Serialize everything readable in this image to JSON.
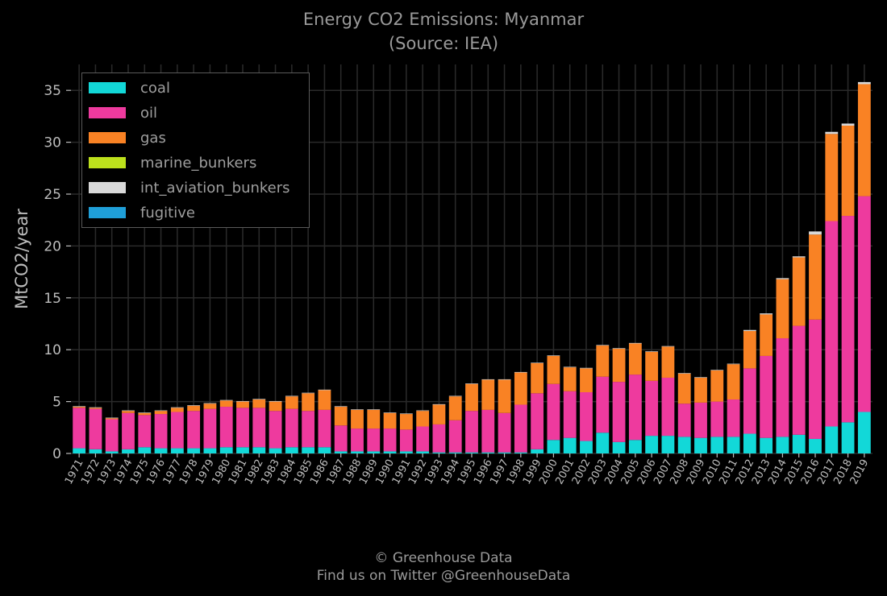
{
  "title_line1": "Energy CO2 Emissions: Myanmar",
  "title_line2": "(Source: IEA)",
  "footer_line1": "© Greenhouse Data",
  "footer_line2": "Find us on Twitter @GreenhouseData",
  "colors": {
    "coal": "#12d8d8",
    "oil": "#ee3a9e",
    "gas": "#f98224",
    "marine_bunkers": "#bde11c",
    "int_aviation_bunkers": "#d9d9d9",
    "fugitive": "#1f9fd8",
    "background": "#000000",
    "grid": "#2a2a2a"
  },
  "chart_data": {
    "type": "bar",
    "stacked": true,
    "title": "Energy CO2 Emissions: Myanmar\n(Source: IEA)",
    "xlabel": "",
    "ylabel": "MtCO2/year",
    "ylim": [
      0,
      37.5
    ],
    "yticks": [
      0,
      5,
      10,
      15,
      20,
      25,
      30,
      35
    ],
    "grid": true,
    "legend_position": "top-left",
    "categories": [
      "1971",
      "1972",
      "1973",
      "1974",
      "1975",
      "1976",
      "1977",
      "1978",
      "1979",
      "1980",
      "1981",
      "1982",
      "1983",
      "1984",
      "1985",
      "1986",
      "1987",
      "1988",
      "1989",
      "1990",
      "1991",
      "1992",
      "1993",
      "1994",
      "1995",
      "1996",
      "1997",
      "1998",
      "1999",
      "2000",
      "2001",
      "2002",
      "2003",
      "2004",
      "2005",
      "2006",
      "2007",
      "2008",
      "2009",
      "2010",
      "2011",
      "2012",
      "2013",
      "2014",
      "2015",
      "2016",
      "2017",
      "2018",
      "2019"
    ],
    "series": [
      {
        "name": "coal",
        "values": [
          0.5,
          0.4,
          0.2,
          0.4,
          0.6,
          0.5,
          0.5,
          0.5,
          0.5,
          0.6,
          0.6,
          0.6,
          0.5,
          0.6,
          0.6,
          0.6,
          0.2,
          0.2,
          0.2,
          0.2,
          0.2,
          0.2,
          0.1,
          0.1,
          0.1,
          0.1,
          0.1,
          0.1,
          0.4,
          1.3,
          1.5,
          1.2,
          2.0,
          1.1,
          1.3,
          1.7,
          1.7,
          1.6,
          1.5,
          1.6,
          1.6,
          1.9,
          1.5,
          1.6,
          1.8,
          1.4,
          2.6,
          3.0,
          4.0
        ]
      },
      {
        "name": "oil",
        "values": [
          3.9,
          3.9,
          3.1,
          3.5,
          3.1,
          3.3,
          3.5,
          3.6,
          3.8,
          3.9,
          3.8,
          3.8,
          3.6,
          3.7,
          3.5,
          3.6,
          2.5,
          2.2,
          2.2,
          2.2,
          2.1,
          2.4,
          2.7,
          3.1,
          4.0,
          4.1,
          3.8,
          4.6,
          5.4,
          5.4,
          4.5,
          4.7,
          5.4,
          5.8,
          6.3,
          5.3,
          5.6,
          3.2,
          3.4,
          3.4,
          3.6,
          6.3,
          7.9,
          9.5,
          10.5,
          11.5,
          19.8,
          19.9,
          20.8
        ]
      },
      {
        "name": "gas",
        "values": [
          0.1,
          0.1,
          0.1,
          0.2,
          0.2,
          0.3,
          0.4,
          0.5,
          0.5,
          0.6,
          0.6,
          0.8,
          0.9,
          1.2,
          1.7,
          1.9,
          1.8,
          1.8,
          1.8,
          1.5,
          1.5,
          1.5,
          1.9,
          2.3,
          2.6,
          2.9,
          3.2,
          3.1,
          2.9,
          2.7,
          2.3,
          2.3,
          3.0,
          3.2,
          3.0,
          2.8,
          3.0,
          2.9,
          2.4,
          3.0,
          3.4,
          3.6,
          4.0,
          5.7,
          6.6,
          8.2,
          8.4,
          8.7,
          10.8
        ]
      },
      {
        "name": "marine_bunkers",
        "values": [
          0,
          0,
          0,
          0,
          0,
          0,
          0,
          0,
          0,
          0,
          0,
          0,
          0,
          0,
          0,
          0,
          0,
          0,
          0,
          0,
          0,
          0,
          0,
          0,
          0,
          0,
          0,
          0,
          0,
          0,
          0,
          0,
          0,
          0,
          0,
          0,
          0,
          0,
          0,
          0,
          0,
          0,
          0,
          0,
          0,
          0,
          0,
          0,
          0
        ]
      },
      {
        "name": "int_aviation_bunkers",
        "values": [
          0.05,
          0.05,
          0.05,
          0.05,
          0.05,
          0.05,
          0.05,
          0.05,
          0.05,
          0.05,
          0.05,
          0.05,
          0.05,
          0.05,
          0.05,
          0.05,
          0.05,
          0.05,
          0.05,
          0.05,
          0.05,
          0.05,
          0.05,
          0.05,
          0.05,
          0.05,
          0.05,
          0.05,
          0.05,
          0.05,
          0.05,
          0.05,
          0.05,
          0.05,
          0.05,
          0.05,
          0.05,
          0.05,
          0.05,
          0.05,
          0.05,
          0.1,
          0.1,
          0.1,
          0.1,
          0.3,
          0.2,
          0.2,
          0.2
        ]
      },
      {
        "name": "fugitive",
        "values": [
          0,
          0,
          0,
          0,
          0,
          0,
          0,
          0,
          0,
          0,
          0,
          0,
          0,
          0,
          0,
          0,
          0,
          0,
          0,
          0,
          0,
          0,
          0,
          0,
          0,
          0,
          0,
          0,
          0,
          0,
          0,
          0,
          0,
          0,
          0,
          0,
          0,
          0,
          0,
          0,
          0,
          0,
          0,
          0,
          0,
          0,
          0,
          0,
          0
        ]
      }
    ]
  }
}
